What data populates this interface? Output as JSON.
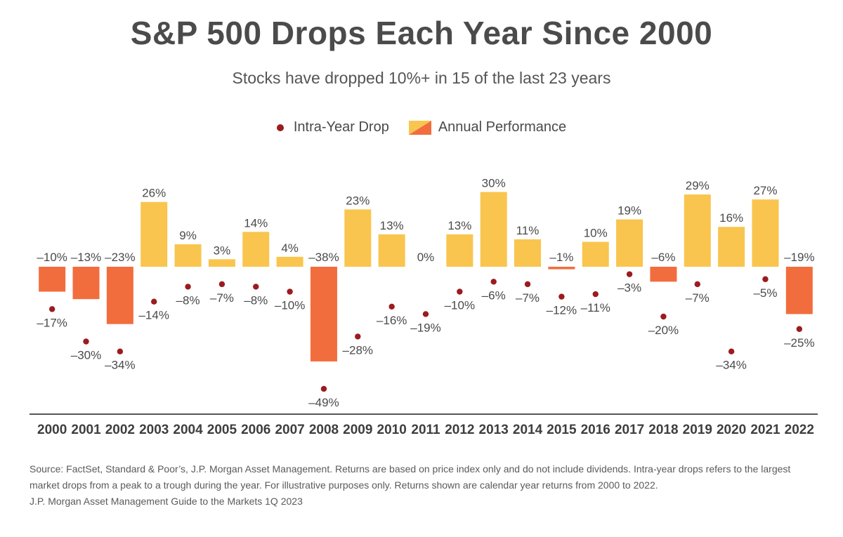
{
  "header": {
    "title": "S&P 500 Drops Each Year Since 2000",
    "subtitle": "Stocks have dropped 10%+ in 15 of the last 23 years"
  },
  "legend": {
    "intra_label": "Intra-Year Drop",
    "annual_label": "Annual Performance"
  },
  "footer": {
    "source_line1": "Source: FactSet, Standard & Poor’s, J.P. Morgan Asset Management. Returns are based on price index only and do not include dividends. Intra-year drops refers to the largest",
    "source_line2": "market drops from a peak to a trough during the year. For illustrative purposes only. Returns shown are calendar year returns from 2000 to 2022.",
    "source_line3": "J.P. Morgan Asset Management Guide to the Markets 1Q 2023"
  },
  "colors": {
    "positive_bar": "#f9c54e",
    "negative_bar": "#f26d3d",
    "dot": "#9b1b1f",
    "axis": "#555555",
    "text": "#4a4a4a"
  },
  "chart_data": {
    "type": "bar",
    "categories": [
      "2000",
      "2001",
      "2002",
      "2003",
      "2004",
      "2005",
      "2006",
      "2007",
      "2008",
      "2009",
      "2010",
      "2011",
      "2012",
      "2013",
      "2014",
      "2015",
      "2016",
      "2017",
      "2018",
      "2019",
      "2020",
      "2021",
      "2022"
    ],
    "series": [
      {
        "name": "Annual Performance",
        "type": "bar",
        "values": [
          -10,
          -13,
          -23,
          26,
          9,
          3,
          14,
          4,
          -38,
          23,
          13,
          0,
          13,
          30,
          11,
          -1,
          10,
          19,
          -6,
          29,
          16,
          27,
          -19
        ],
        "labels": [
          "–10%",
          "–13%",
          "–23%",
          "26%",
          "9%",
          "3%",
          "14%",
          "4%",
          "–38%",
          "23%",
          "13%",
          "0%",
          "13%",
          "30%",
          "11%",
          "–1%",
          "10%",
          "19%",
          "–6%",
          "29%",
          "16%",
          "27%",
          "–19%"
        ]
      },
      {
        "name": "Intra-Year Drop",
        "type": "scatter",
        "values": [
          -17,
          -30,
          -34,
          -14,
          -8,
          -7,
          -8,
          -10,
          -49,
          -28,
          -16,
          -19,
          -10,
          -6,
          -7,
          -12,
          -11,
          -3,
          -20,
          -7,
          -34,
          -5,
          -25
        ],
        "labels": [
          "–17%",
          "–30%",
          "–34%",
          "–14%",
          "–8%",
          "–7%",
          "–8%",
          "–10%",
          "–49%",
          "–28%",
          "–16%",
          "–19%",
          "–10%",
          "–6%",
          "–7%",
          "–12%",
          "–11%",
          "–3%",
          "–20%",
          "–7%",
          "–34%",
          "–5%",
          "–25%"
        ]
      }
    ],
    "ylim": [
      -59,
      31
    ],
    "grid": false,
    "legend_position": "top-center"
  }
}
